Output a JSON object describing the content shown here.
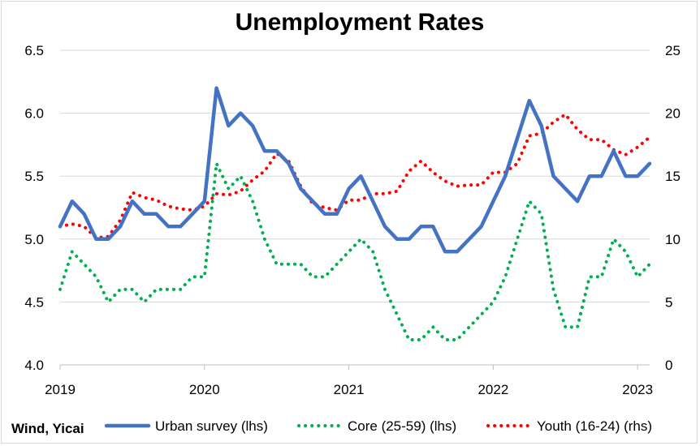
{
  "chart_data": {
    "type": "line",
    "title": "Unemployment Rates",
    "source_note": "Wind, Yicai",
    "colors": {
      "urban": "#4472C4",
      "core": "#00B050",
      "youth": "#FF0000",
      "grid": "#d9d9d9"
    },
    "x_tick_labels": [
      "2019",
      "2020",
      "2021",
      "2022",
      "2023"
    ],
    "y_left": {
      "range": [
        4.0,
        6.5
      ],
      "ticks": [
        "4.0",
        "4.5",
        "5.0",
        "5.5",
        "6.0",
        "6.5"
      ]
    },
    "y_right": {
      "range": [
        0,
        25
      ],
      "ticks": [
        "0",
        "5",
        "10",
        "15",
        "20",
        "25"
      ]
    },
    "grid": "horizontal",
    "legend": "bottom",
    "series": [
      {
        "name": "Urban survey (lhs)",
        "axis": "left",
        "style": "solid",
        "points": [
          [
            "2019-01",
            5.1
          ],
          [
            "2019-02",
            5.3
          ],
          [
            "2019-03",
            5.2
          ],
          [
            "2019-04",
            5.0
          ],
          [
            "2019-05",
            5.0
          ],
          [
            "2019-06",
            5.1
          ],
          [
            "2019-07",
            5.3
          ],
          [
            "2019-08",
            5.2
          ],
          [
            "2019-09",
            5.2
          ],
          [
            "2019-10",
            5.1
          ],
          [
            "2019-11",
            5.1
          ],
          [
            "2019-12",
            5.2
          ],
          [
            "2020-01",
            5.3
          ],
          [
            "2020-02",
            6.2
          ],
          [
            "2020-03",
            5.9
          ],
          [
            "2020-04",
            6.0
          ],
          [
            "2020-05",
            5.9
          ],
          [
            "2020-06",
            5.7
          ],
          [
            "2020-07",
            5.7
          ],
          [
            "2020-08",
            5.6
          ],
          [
            "2020-09",
            5.4
          ],
          [
            "2020-10",
            5.3
          ],
          [
            "2020-11",
            5.2
          ],
          [
            "2020-12",
            5.2
          ],
          [
            "2021-01",
            5.4
          ],
          [
            "2021-02",
            5.5
          ],
          [
            "2021-03",
            5.3
          ],
          [
            "2021-04",
            5.1
          ],
          [
            "2021-05",
            5.0
          ],
          [
            "2021-06",
            5.0
          ],
          [
            "2021-07",
            5.1
          ],
          [
            "2021-08",
            5.1
          ],
          [
            "2021-09",
            4.9
          ],
          [
            "2021-10",
            4.9
          ],
          [
            "2021-11",
            5.0
          ],
          [
            "2021-12",
            5.1
          ],
          [
            "2022-01",
            5.3
          ],
          [
            "2022-02",
            5.5
          ],
          [
            "2022-03",
            5.8
          ],
          [
            "2022-04",
            6.1
          ],
          [
            "2022-05",
            5.9
          ],
          [
            "2022-06",
            5.5
          ],
          [
            "2022-07",
            5.4
          ],
          [
            "2022-08",
            5.3
          ],
          [
            "2022-09",
            5.5
          ],
          [
            "2022-10",
            5.5
          ],
          [
            "2022-11",
            5.7
          ],
          [
            "2022-12",
            5.5
          ],
          [
            "2023-01",
            5.5
          ],
          [
            "2023-02",
            5.6
          ]
        ]
      },
      {
        "name": "Core (25-59) (lhs)",
        "axis": "left",
        "style": "dotted",
        "points": [
          [
            "2019-01",
            4.6
          ],
          [
            "2019-02",
            4.9
          ],
          [
            "2019-03",
            4.8
          ],
          [
            "2019-04",
            4.7
          ],
          [
            "2019-05",
            4.5
          ],
          [
            "2019-06",
            4.6
          ],
          [
            "2019-07",
            4.6
          ],
          [
            "2019-08",
            4.5
          ],
          [
            "2019-09",
            4.6
          ],
          [
            "2019-10",
            4.6
          ],
          [
            "2019-11",
            4.6
          ],
          [
            "2019-12",
            4.7
          ],
          [
            "2020-01",
            4.7
          ],
          [
            "2020-02",
            5.6
          ],
          [
            "2020-03",
            5.4
          ],
          [
            "2020-04",
            5.5
          ],
          [
            "2020-05",
            5.3
          ],
          [
            "2020-06",
            5.0
          ],
          [
            "2020-07",
            4.8
          ],
          [
            "2020-08",
            4.8
          ],
          [
            "2020-09",
            4.8
          ],
          [
            "2020-10",
            4.7
          ],
          [
            "2020-11",
            4.7
          ],
          [
            "2020-12",
            4.8
          ],
          [
            "2021-01",
            4.9
          ],
          [
            "2021-02",
            5.0
          ],
          [
            "2021-03",
            4.9
          ],
          [
            "2021-04",
            4.6
          ],
          [
            "2021-05",
            4.4
          ],
          [
            "2021-06",
            4.2
          ],
          [
            "2021-07",
            4.2
          ],
          [
            "2021-08",
            4.3
          ],
          [
            "2021-09",
            4.2
          ],
          [
            "2021-10",
            4.2
          ],
          [
            "2021-11",
            4.3
          ],
          [
            "2021-12",
            4.4
          ],
          [
            "2022-01",
            4.5
          ],
          [
            "2022-02",
            4.7
          ],
          [
            "2022-03",
            5.0
          ],
          [
            "2022-04",
            5.3
          ],
          [
            "2022-05",
            5.2
          ],
          [
            "2022-06",
            4.6
          ],
          [
            "2022-07",
            4.3
          ],
          [
            "2022-08",
            4.3
          ],
          [
            "2022-09",
            4.7
          ],
          [
            "2022-10",
            4.7
          ],
          [
            "2022-11",
            5.0
          ],
          [
            "2022-12",
            4.9
          ],
          [
            "2023-01",
            4.7
          ],
          [
            "2023-02",
            4.8
          ]
        ]
      },
      {
        "name": "Youth (16-24) (rhs)",
        "axis": "right",
        "style": "dotted",
        "points": [
          [
            "2019-01",
            11.0
          ],
          [
            "2019-02",
            11.2
          ],
          [
            "2019-03",
            11.0
          ],
          [
            "2019-04",
            10.1
          ],
          [
            "2019-05",
            10.2
          ],
          [
            "2019-06",
            11.5
          ],
          [
            "2019-07",
            13.7
          ],
          [
            "2019-08",
            13.3
          ],
          [
            "2019-09",
            13.1
          ],
          [
            "2019-10",
            12.6
          ],
          [
            "2019-11",
            12.4
          ],
          [
            "2019-12",
            12.3
          ],
          [
            "2020-01",
            12.6
          ],
          [
            "2020-02",
            13.6
          ],
          [
            "2020-03",
            13.5
          ],
          [
            "2020-04",
            13.8
          ],
          [
            "2020-05",
            14.7
          ],
          [
            "2020-06",
            15.4
          ],
          [
            "2020-07",
            16.8
          ],
          [
            "2020-08",
            16.2
          ],
          [
            "2020-09",
            14.2
          ],
          [
            "2020-10",
            12.8
          ],
          [
            "2020-11",
            12.5
          ],
          [
            "2020-12",
            12.3
          ],
          [
            "2021-01",
            13.1
          ],
          [
            "2021-02",
            13.1
          ],
          [
            "2021-03",
            13.6
          ],
          [
            "2021-04",
            13.6
          ],
          [
            "2021-05",
            13.8
          ],
          [
            "2021-06",
            15.4
          ],
          [
            "2021-07",
            16.2
          ],
          [
            "2021-08",
            15.3
          ],
          [
            "2021-09",
            14.6
          ],
          [
            "2021-10",
            14.2
          ],
          [
            "2021-11",
            14.3
          ],
          [
            "2021-12",
            14.3
          ],
          [
            "2022-01",
            15.3
          ],
          [
            "2022-02",
            15.3
          ],
          [
            "2022-03",
            16.0
          ],
          [
            "2022-04",
            18.2
          ],
          [
            "2022-05",
            18.4
          ],
          [
            "2022-06",
            19.3
          ],
          [
            "2022-07",
            19.9
          ],
          [
            "2022-08",
            18.7
          ],
          [
            "2022-09",
            17.9
          ],
          [
            "2022-10",
            17.9
          ],
          [
            "2022-11",
            17.1
          ],
          [
            "2022-12",
            16.7
          ],
          [
            "2023-01",
            17.3
          ],
          [
            "2023-02",
            18.1
          ]
        ]
      }
    ]
  }
}
